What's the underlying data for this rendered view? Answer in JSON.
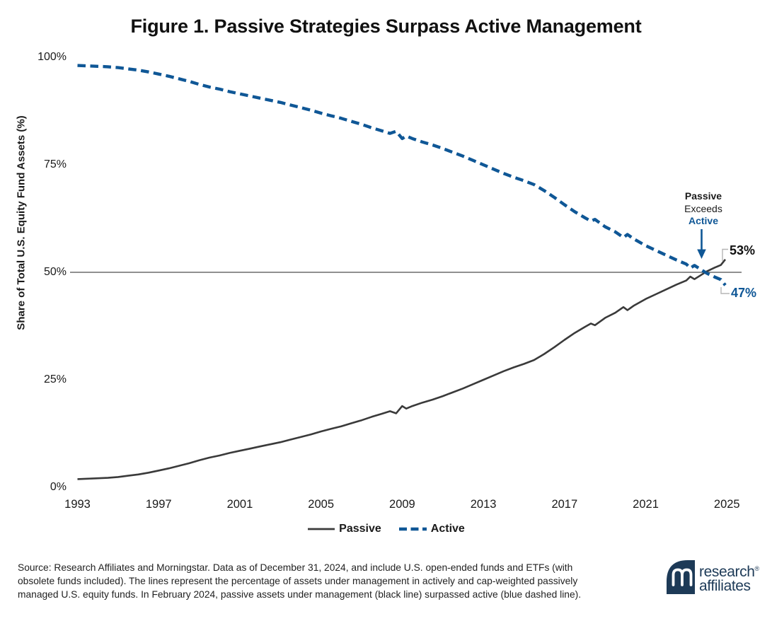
{
  "title": "Figure 1. Passive Strategies Surpass Active Management",
  "footer": {
    "source_lines": [
      "Source: Research Affiliates and Morningstar. Data as of December 31, 2024, and include U.S. open-ended funds and ETFs (with",
      "obsolete funds included). The lines represent the percentage of assets under management in actively and cap-weighted passively",
      "managed U.S. equity funds. In February 2024, passive assets under management (black line) surpassed active (blue dashed line)."
    ]
  },
  "logo": {
    "word1": "research",
    "word2": "affiliates",
    "reg": "®"
  },
  "colors": {
    "passive_line": "#3a3a3a",
    "active_line": "#0f5796",
    "reference_line": "#4d4d4d",
    "leader": "#b5b5b5",
    "text": "#1a1a1a",
    "logo_navy": "#1d3a57"
  },
  "chart_data": {
    "type": "line",
    "title": "Figure 1. Passive Strategies Surpass Active Management",
    "xlabel": "",
    "ylabel": "Share of Total U.S. Equity Fund Assets (%)",
    "xlim": [
      1993,
      2025
    ],
    "ylim": [
      0,
      100
    ],
    "grid": false,
    "legend_position": "bottom",
    "reference_line_y": 50,
    "x_ticks": [
      {
        "value": 1993,
        "label": "1993"
      },
      {
        "value": 1997,
        "label": "1997"
      },
      {
        "value": 2001,
        "label": "2001"
      },
      {
        "value": 2005,
        "label": "2005"
      },
      {
        "value": 2009,
        "label": "2009"
      },
      {
        "value": 2013,
        "label": "2013"
      },
      {
        "value": 2017,
        "label": "2017"
      },
      {
        "value": 2021,
        "label": "2021"
      },
      {
        "value": 2025,
        "label": "2025"
      }
    ],
    "y_ticks": [
      {
        "value": 100,
        "label": "100%"
      },
      {
        "value": 75,
        "label": "75%"
      },
      {
        "value": 50,
        "label": "50%"
      },
      {
        "value": 25,
        "label": "25%"
      },
      {
        "value": 0,
        "label": "0%"
      }
    ],
    "crossover": {
      "date": "February 2024",
      "annotation_lines": [
        "Passive",
        "Exceeds",
        "Active"
      ]
    },
    "series": [
      {
        "name": "Passive",
        "style": "solid",
        "color": "#3a3a3a",
        "end_label": "53%",
        "points": [
          [
            1993.0,
            1.9
          ],
          [
            1993.5,
            2.0
          ],
          [
            1994.0,
            2.1
          ],
          [
            1994.5,
            2.2
          ],
          [
            1995.0,
            2.4
          ],
          [
            1995.5,
            2.7
          ],
          [
            1996.0,
            3.0
          ],
          [
            1996.5,
            3.4
          ],
          [
            1997.0,
            3.9
          ],
          [
            1997.5,
            4.4
          ],
          [
            1998.0,
            5.0
          ],
          [
            1998.5,
            5.6
          ],
          [
            1999.0,
            6.3
          ],
          [
            1999.5,
            6.9
          ],
          [
            2000.0,
            7.4
          ],
          [
            2000.5,
            8.0
          ],
          [
            2001.0,
            8.5
          ],
          [
            2001.5,
            9.0
          ],
          [
            2002.0,
            9.5
          ],
          [
            2002.5,
            10.0
          ],
          [
            2003.0,
            10.5
          ],
          [
            2003.5,
            11.1
          ],
          [
            2004.0,
            11.7
          ],
          [
            2004.5,
            12.3
          ],
          [
            2005.0,
            13.0
          ],
          [
            2005.5,
            13.6
          ],
          [
            2006.0,
            14.2
          ],
          [
            2006.5,
            14.9
          ],
          [
            2007.0,
            15.6
          ],
          [
            2007.5,
            16.4
          ],
          [
            2008.0,
            17.1
          ],
          [
            2008.4,
            17.7
          ],
          [
            2008.7,
            17.2
          ],
          [
            2009.0,
            18.9
          ],
          [
            2009.2,
            18.3
          ],
          [
            2009.5,
            18.9
          ],
          [
            2010.0,
            19.7
          ],
          [
            2010.5,
            20.4
          ],
          [
            2011.0,
            21.2
          ],
          [
            2011.5,
            22.1
          ],
          [
            2012.0,
            23.0
          ],
          [
            2012.5,
            24.0
          ],
          [
            2013.0,
            25.0
          ],
          [
            2013.5,
            26.0
          ],
          [
            2014.0,
            27.0
          ],
          [
            2014.5,
            27.9
          ],
          [
            2015.0,
            28.7
          ],
          [
            2015.5,
            29.6
          ],
          [
            2016.0,
            31.0
          ],
          [
            2016.5,
            32.6
          ],
          [
            2017.0,
            34.3
          ],
          [
            2017.5,
            35.9
          ],
          [
            2018.0,
            37.3
          ],
          [
            2018.3,
            38.1
          ],
          [
            2018.5,
            37.7
          ],
          [
            2019.0,
            39.4
          ],
          [
            2019.5,
            40.6
          ],
          [
            2019.9,
            41.9
          ],
          [
            2020.1,
            41.2
          ],
          [
            2020.4,
            42.2
          ],
          [
            2021.0,
            43.8
          ],
          [
            2021.5,
            44.9
          ],
          [
            2022.0,
            46.0
          ],
          [
            2022.5,
            47.1
          ],
          [
            2023.0,
            48.1
          ],
          [
            2023.2,
            49.0
          ],
          [
            2023.4,
            48.4
          ],
          [
            2023.7,
            49.3
          ],
          [
            2024.0,
            50.2
          ],
          [
            2024.4,
            51.1
          ],
          [
            2024.7,
            51.7
          ],
          [
            2024.92,
            53.0
          ]
        ]
      },
      {
        "name": "Active",
        "style": "dashed",
        "color": "#0f5796",
        "end_label": "47%",
        "points": [
          [
            1993.0,
            98.1
          ],
          [
            1993.5,
            98.0
          ],
          [
            1994.0,
            97.9
          ],
          [
            1994.5,
            97.8
          ],
          [
            1995.0,
            97.6
          ],
          [
            1995.5,
            97.3
          ],
          [
            1996.0,
            97.0
          ],
          [
            1996.5,
            96.6
          ],
          [
            1997.0,
            96.1
          ],
          [
            1997.5,
            95.6
          ],
          [
            1998.0,
            95.0
          ],
          [
            1998.5,
            94.4
          ],
          [
            1999.0,
            93.7
          ],
          [
            1999.5,
            93.1
          ],
          [
            2000.0,
            92.6
          ],
          [
            2000.5,
            92.0
          ],
          [
            2001.0,
            91.5
          ],
          [
            2001.5,
            91.0
          ],
          [
            2002.0,
            90.5
          ],
          [
            2002.5,
            90.0
          ],
          [
            2003.0,
            89.5
          ],
          [
            2003.5,
            88.9
          ],
          [
            2004.0,
            88.3
          ],
          [
            2004.5,
            87.7
          ],
          [
            2005.0,
            87.0
          ],
          [
            2005.5,
            86.4
          ],
          [
            2006.0,
            85.8
          ],
          [
            2006.5,
            85.1
          ],
          [
            2007.0,
            84.4
          ],
          [
            2007.5,
            83.6
          ],
          [
            2008.0,
            82.9
          ],
          [
            2008.4,
            82.3
          ],
          [
            2008.7,
            82.8
          ],
          [
            2009.0,
            81.1
          ],
          [
            2009.2,
            81.7
          ],
          [
            2009.5,
            81.1
          ],
          [
            2010.0,
            80.3
          ],
          [
            2010.5,
            79.6
          ],
          [
            2011.0,
            78.8
          ],
          [
            2011.5,
            77.9
          ],
          [
            2012.0,
            77.0
          ],
          [
            2012.5,
            76.0
          ],
          [
            2013.0,
            75.0
          ],
          [
            2013.5,
            74.0
          ],
          [
            2014.0,
            73.0
          ],
          [
            2014.5,
            72.1
          ],
          [
            2015.0,
            71.3
          ],
          [
            2015.5,
            70.4
          ],
          [
            2016.0,
            69.0
          ],
          [
            2016.5,
            67.4
          ],
          [
            2017.0,
            65.7
          ],
          [
            2017.5,
            64.1
          ],
          [
            2018.0,
            62.7
          ],
          [
            2018.3,
            61.9
          ],
          [
            2018.5,
            62.3
          ],
          [
            2019.0,
            60.6
          ],
          [
            2019.5,
            59.4
          ],
          [
            2019.9,
            58.1
          ],
          [
            2020.1,
            58.8
          ],
          [
            2020.4,
            57.8
          ],
          [
            2021.0,
            56.2
          ],
          [
            2021.5,
            55.1
          ],
          [
            2022.0,
            54.0
          ],
          [
            2022.5,
            52.9
          ],
          [
            2023.0,
            51.9
          ],
          [
            2023.2,
            51.0
          ],
          [
            2023.4,
            51.6
          ],
          [
            2023.7,
            50.7
          ],
          [
            2024.0,
            49.8
          ],
          [
            2024.4,
            48.9
          ],
          [
            2024.7,
            48.3
          ],
          [
            2024.92,
            47.0
          ]
        ]
      }
    ]
  }
}
